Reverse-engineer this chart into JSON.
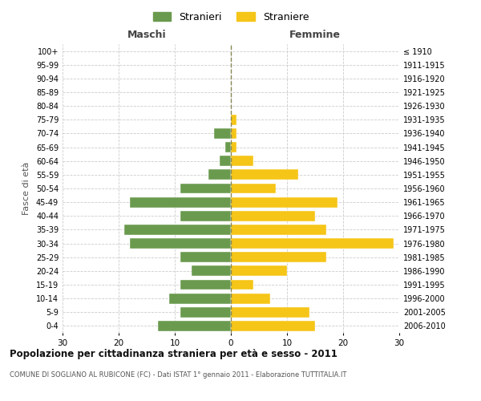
{
  "age_groups": [
    "0-4",
    "5-9",
    "10-14",
    "15-19",
    "20-24",
    "25-29",
    "30-34",
    "35-39",
    "40-44",
    "45-49",
    "50-54",
    "55-59",
    "60-64",
    "65-69",
    "70-74",
    "75-79",
    "80-84",
    "85-89",
    "90-94",
    "95-99",
    "100+"
  ],
  "birth_years": [
    "2006-2010",
    "2001-2005",
    "1996-2000",
    "1991-1995",
    "1986-1990",
    "1981-1985",
    "1976-1980",
    "1971-1975",
    "1966-1970",
    "1961-1965",
    "1956-1960",
    "1951-1955",
    "1946-1950",
    "1941-1945",
    "1936-1940",
    "1931-1935",
    "1926-1930",
    "1921-1925",
    "1916-1920",
    "1911-1915",
    "≤ 1910"
  ],
  "maschi": [
    13,
    9,
    11,
    9,
    7,
    9,
    18,
    19,
    9,
    18,
    9,
    4,
    2,
    1,
    3,
    0,
    0,
    0,
    0,
    0,
    0
  ],
  "femmine": [
    15,
    14,
    7,
    4,
    10,
    17,
    29,
    17,
    15,
    19,
    8,
    12,
    4,
    1,
    1,
    1,
    0,
    0,
    0,
    0,
    0
  ],
  "male_color": "#6a9a4e",
  "female_color": "#f5c518",
  "title": "Popolazione per cittadinanza straniera per età e sesso - 2011",
  "subtitle": "COMUNE DI SOGLIANO AL RUBICONE (FC) - Dati ISTAT 1° gennaio 2011 - Elaborazione TUTTITALIA.IT",
  "xlabel_left": "Maschi",
  "xlabel_right": "Femmine",
  "ylabel_left": "Fasce di età",
  "legend_male": "Stranieri",
  "legend_female": "Straniere",
  "xlim": 30,
  "background_color": "#ffffff",
  "grid_color": "#cccccc"
}
